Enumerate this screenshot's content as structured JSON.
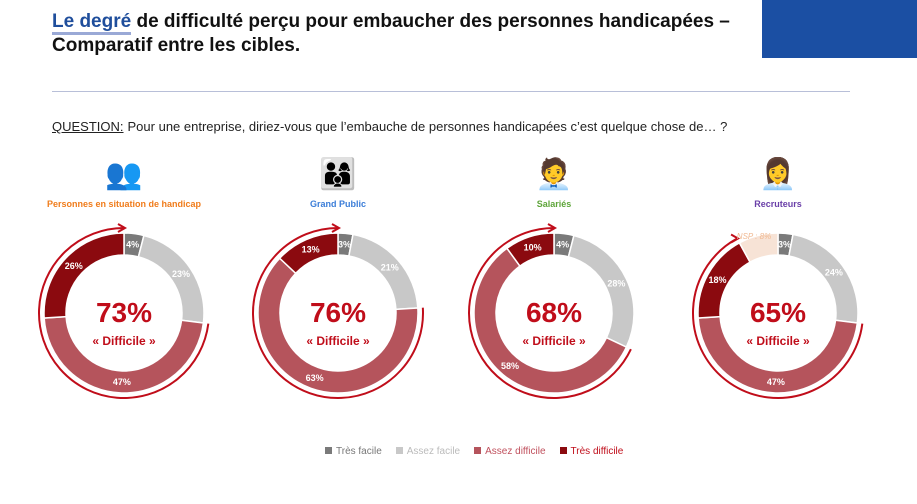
{
  "header": {
    "title_highlight": "Le degré",
    "title_rest": " de difficulté perçu pour embaucher des personnes handicapées –",
    "title_line2": "Comparatif entre les cibles."
  },
  "question": {
    "label": "QUESTION:",
    "text": "Pour une entreprise, diriez-vous que l’embauche de personnes handicapées c’est quelque chose de… ?"
  },
  "colors": {
    "tres_facile": "#7a7a7a",
    "assez_facile": "#c8c8c8",
    "assez_difficile": "#b5545c",
    "tres_difficile": "#8b0a0f",
    "nsp": "#f7e3d6",
    "accent": "#c00d1a"
  },
  "chart_data": {
    "type": "pie",
    "categories": [
      "Très facile",
      "Assez facile",
      "Assez difficile",
      "Très difficile"
    ],
    "groups": [
      {
        "name": "Personnes en situation de handicap",
        "icon": "diverse-people-icon",
        "label_color": "#f07c1b",
        "values": [
          4,
          23,
          47,
          26
        ],
        "total": "73%",
        "total_label": "« Difficile »"
      },
      {
        "name": "Grand Public",
        "icon": "group-icon",
        "label_color": "#3b7dd8",
        "values": [
          3,
          21,
          63,
          13
        ],
        "total": "76%",
        "total_label": "« Difficile »"
      },
      {
        "name": "Salariés",
        "icon": "employees-icon",
        "label_color": "#5ea53a",
        "values": [
          4,
          28,
          58,
          10
        ],
        "total": "68%",
        "total_label": "« Difficile »"
      },
      {
        "name": "Recruteurs",
        "icon": "recruiter-icon",
        "label_color": "#6a3fa8",
        "values": [
          3,
          24,
          47,
          18
        ],
        "nsp": 8,
        "nsp_label": "NSP : 8%",
        "total": "65%",
        "total_label": "« Difficile »"
      }
    ]
  }
}
